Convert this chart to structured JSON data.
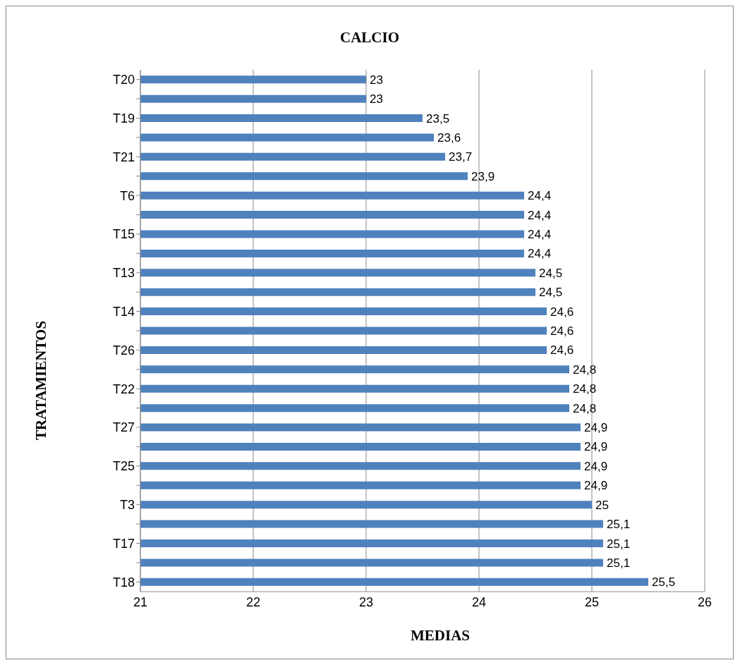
{
  "chart_data": {
    "type": "bar",
    "orientation": "horizontal",
    "title": "CALCIO",
    "xlabel": "MEDIAS",
    "ylabel": "TRATAMIENTOS",
    "categories": [
      "T20",
      null,
      "T19",
      null,
      "T21",
      null,
      "T6",
      null,
      "T15",
      null,
      "T13",
      null,
      "T14",
      null,
      "T26",
      null,
      "T22",
      null,
      "T27",
      null,
      "T25",
      null,
      "T3",
      null,
      "T17",
      null,
      "T18"
    ],
    "values": [
      23,
      23,
      23.5,
      23.6,
      23.7,
      23.9,
      24.4,
      24.4,
      24.4,
      24.4,
      24.5,
      24.5,
      24.6,
      24.6,
      24.6,
      24.8,
      24.8,
      24.8,
      24.9,
      24.9,
      24.9,
      24.9,
      25,
      25.1,
      25.1,
      25.1,
      25.5
    ],
    "value_labels": [
      "23",
      "23",
      "23,5",
      "23,6",
      "23,7",
      "23,9",
      "24,4",
      "24,4",
      "24,4",
      "24,4",
      "24,5",
      "24,5",
      "24,6",
      "24,6",
      "24,6",
      "24,8",
      "24,8",
      "24,8",
      "24,9",
      "24,9",
      "24,9",
      "24,9",
      "25",
      "25,1",
      "25,1",
      "25,1",
      "25,5"
    ],
    "color": "#4f81bd",
    "xlim": [
      21,
      26
    ],
    "xticks": [
      21,
      22,
      23,
      24,
      25,
      26
    ],
    "grid": "x"
  }
}
